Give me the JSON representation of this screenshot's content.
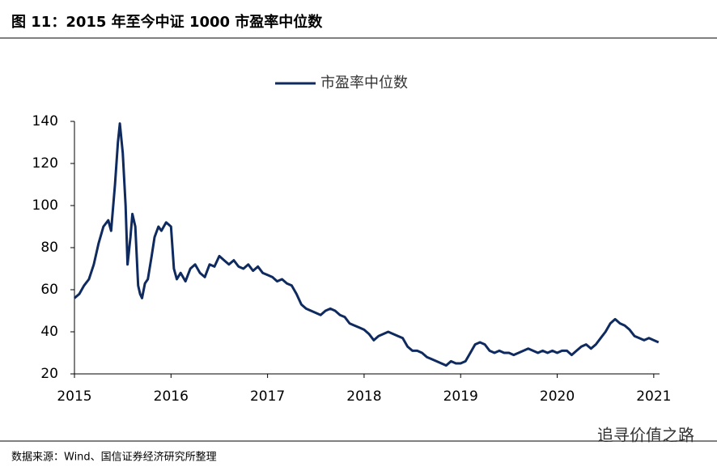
{
  "chart_data": {
    "type": "line",
    "title": "图 11：2015 年至今中证 1000 市盈率中位数",
    "x": [
      2015.0,
      2015.05,
      2015.1,
      2015.15,
      2015.2,
      2015.25,
      2015.3,
      2015.35,
      2015.38,
      2015.42,
      2015.45,
      2015.47,
      2015.5,
      2015.53,
      2015.55,
      2015.58,
      2015.6,
      2015.63,
      2015.66,
      2015.68,
      2015.7,
      2015.73,
      2015.76,
      2015.8,
      2015.83,
      2015.87,
      2015.9,
      2015.95,
      2016.0,
      2016.03,
      2016.06,
      2016.1,
      2016.15,
      2016.2,
      2016.25,
      2016.3,
      2016.35,
      2016.4,
      2016.45,
      2016.5,
      2016.55,
      2016.6,
      2016.65,
      2016.7,
      2016.75,
      2016.8,
      2016.85,
      2016.9,
      2016.95,
      2017.0,
      2017.05,
      2017.1,
      2017.15,
      2017.2,
      2017.25,
      2017.3,
      2017.35,
      2017.4,
      2017.45,
      2017.5,
      2017.55,
      2017.6,
      2017.65,
      2017.7,
      2017.75,
      2017.8,
      2017.85,
      2017.9,
      2017.95,
      2018.0,
      2018.05,
      2018.1,
      2018.15,
      2018.2,
      2018.25,
      2018.3,
      2018.35,
      2018.4,
      2018.45,
      2018.5,
      2018.55,
      2018.6,
      2018.65,
      2018.7,
      2018.75,
      2018.8,
      2018.85,
      2018.9,
      2018.95,
      2019.0,
      2019.05,
      2019.1,
      2019.15,
      2019.2,
      2019.25,
      2019.3,
      2019.35,
      2019.4,
      2019.45,
      2019.5,
      2019.55,
      2019.6,
      2019.65,
      2019.7,
      2019.75,
      2019.8,
      2019.85,
      2019.9,
      2019.95,
      2020.0,
      2020.05,
      2020.1,
      2020.15,
      2020.2,
      2020.25,
      2020.3,
      2020.35,
      2020.4,
      2020.45,
      2020.5,
      2020.55,
      2020.6,
      2020.65,
      2020.7,
      2020.75,
      2020.8,
      2020.85,
      2020.9,
      2020.95,
      2021.0,
      2021.05
    ],
    "series": [
      {
        "name": "市盈率中位数",
        "color": "#0e2a5e",
        "values": [
          56,
          58,
          62,
          65,
          72,
          82,
          90,
          93,
          88,
          110,
          130,
          139,
          125,
          100,
          72,
          85,
          96,
          90,
          62,
          58,
          56,
          63,
          65,
          76,
          85,
          90,
          88,
          92,
          90,
          70,
          65,
          68,
          64,
          70,
          72,
          68,
          66,
          72,
          71,
          76,
          74,
          72,
          74,
          71,
          70,
          72,
          69,
          71,
          68,
          67,
          66,
          64,
          65,
          63,
          62,
          58,
          53,
          51,
          50,
          49,
          48,
          50,
          51,
          50,
          48,
          47,
          44,
          43,
          42,
          41,
          39,
          36,
          38,
          39,
          40,
          39,
          38,
          37,
          33,
          31,
          31,
          30,
          28,
          27,
          26,
          25,
          24,
          26,
          25,
          25,
          26,
          30,
          34,
          35,
          34,
          31,
          30,
          31,
          30,
          30,
          29,
          30,
          31,
          32,
          31,
          30,
          31,
          30,
          31,
          30,
          31,
          31,
          29,
          31,
          33,
          34,
          32,
          34,
          37,
          40,
          44,
          46,
          44,
          43,
          41,
          38,
          37,
          36,
          37,
          36,
          35
        ]
      }
    ],
    "xlim": [
      2015,
      2021.06
    ],
    "xticks": [
      2015,
      2016,
      2017,
      2018,
      2019,
      2020,
      2021
    ],
    "ylim": [
      20,
      140
    ],
    "yticks": [
      20,
      40,
      60,
      80,
      100,
      120,
      140
    ],
    "legend": "top"
  },
  "source": "数据来源：Wind、国信证券经济研究所整理",
  "watermark": "追寻价值之路"
}
